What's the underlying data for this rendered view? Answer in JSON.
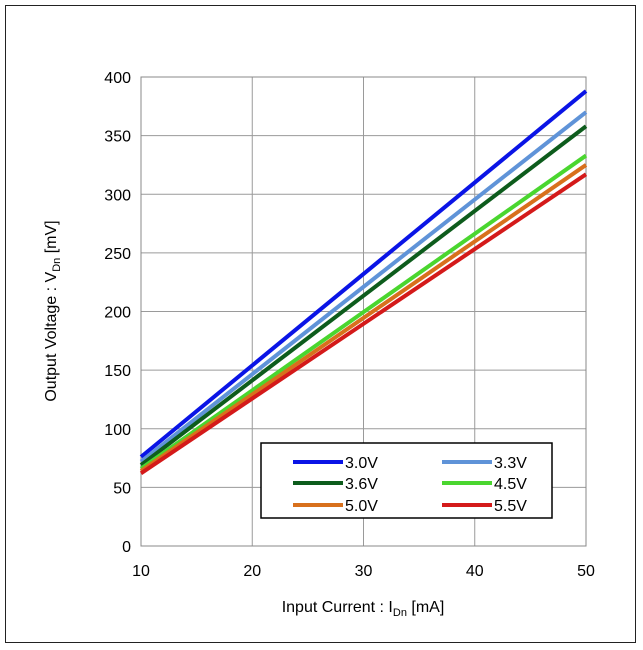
{
  "chart_data": {
    "type": "line",
    "title": "",
    "xlabel": {
      "main": "Input Current : I",
      "sub": "Dn",
      "unit": " [mA]"
    },
    "ylabel": {
      "main": "Output Voltage : V",
      "sub": "Dn",
      "unit": " [mV]"
    },
    "xlim": [
      10,
      50
    ],
    "ylim": [
      0,
      400
    ],
    "xticks": [
      10,
      20,
      30,
      40,
      50
    ],
    "yticks": [
      0,
      50,
      100,
      150,
      200,
      250,
      300,
      350,
      400
    ],
    "grid": true,
    "legend": "lower-right",
    "series": [
      {
        "name": "3.0V",
        "color": "#0a14e6",
        "x": [
          10,
          50
        ],
        "y": [
          76,
          388
        ]
      },
      {
        "name": "3.3V",
        "color": "#5f93d8",
        "x": [
          10,
          50
        ],
        "y": [
          72,
          370
        ]
      },
      {
        "name": "3.6V",
        "color": "#0d5c1c",
        "x": [
          10,
          50
        ],
        "y": [
          69,
          358
        ]
      },
      {
        "name": "4.5V",
        "color": "#4ad62f",
        "x": [
          10,
          50
        ],
        "y": [
          66,
          333
        ]
      },
      {
        "name": "5.0V",
        "color": "#d8701c",
        "x": [
          10,
          50
        ],
        "y": [
          64,
          325
        ]
      },
      {
        "name": "5.5V",
        "color": "#d41a1a",
        "x": [
          10,
          50
        ],
        "y": [
          62,
          317
        ]
      }
    ]
  }
}
